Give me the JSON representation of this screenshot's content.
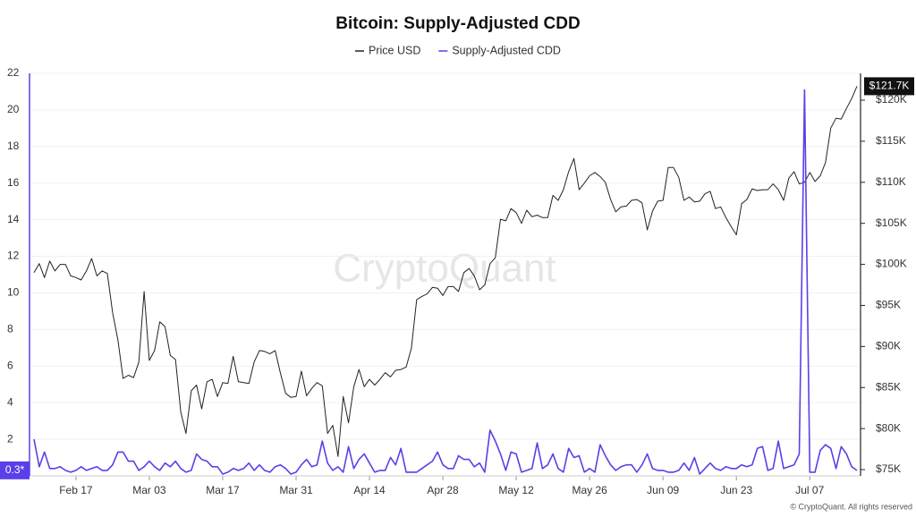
{
  "chart_data": {
    "type": "line",
    "title": "Bitcoin: Supply-Adjusted CDD",
    "watermark": "CryptoQuant",
    "footer": "© CryptoQuant. All rights reserved",
    "grid": true,
    "legend": "top",
    "categories": [
      null,
      null,
      null,
      null,
      null,
      null,
      null,
      null,
      "Feb 17",
      null,
      null,
      null,
      null,
      null,
      null,
      null,
      null,
      null,
      null,
      null,
      null,
      null,
      "Mar 03",
      null,
      null,
      null,
      null,
      null,
      null,
      null,
      null,
      null,
      null,
      null,
      null,
      null,
      "Mar 17",
      null,
      null,
      null,
      null,
      null,
      null,
      null,
      null,
      null,
      null,
      null,
      null,
      null,
      "Mar 31",
      null,
      null,
      null,
      null,
      null,
      null,
      null,
      null,
      null,
      null,
      null,
      null,
      null,
      "Apr 14",
      null,
      null,
      null,
      null,
      null,
      null,
      null,
      null,
      null,
      null,
      null,
      null,
      null,
      "Apr 28",
      null,
      null,
      null,
      null,
      null,
      null,
      null,
      null,
      null,
      null,
      null,
      null,
      null,
      "May 12",
      null,
      null,
      null,
      null,
      null,
      null,
      null,
      null,
      null,
      null,
      null,
      null,
      null,
      "May 26",
      null,
      null,
      null,
      null,
      null,
      null,
      null,
      null,
      null,
      null,
      null,
      null,
      null,
      "Jun 09",
      null,
      null,
      null,
      null,
      null,
      null,
      null,
      null,
      null,
      null,
      null,
      null,
      null,
      "Jun 23",
      null,
      null,
      null,
      null,
      null,
      null,
      null,
      null,
      null,
      null,
      null,
      null,
      null,
      "Jul 07",
      null,
      null,
      null,
      null,
      null,
      null,
      null,
      null,
      null
    ],
    "ylim": [
      0,
      22
    ],
    "yticks": [
      0,
      2,
      4,
      6,
      8,
      10,
      12,
      14,
      16,
      18,
      20,
      22
    ],
    "y2lim": [
      74240,
      123270
    ],
    "y2ticks": [
      {
        "value": 75000,
        "label": "$75K"
      },
      {
        "value": 80000,
        "label": "$80K"
      },
      {
        "value": 85000,
        "label": "$85K"
      },
      {
        "value": 90000,
        "label": "$90K"
      },
      {
        "value": 95000,
        "label": "$95K"
      },
      {
        "value": 100000,
        "label": "$100K"
      },
      {
        "value": 105000,
        "label": "$105K"
      },
      {
        "value": 110000,
        "label": "$110K"
      },
      {
        "value": 115000,
        "label": "$115K"
      },
      {
        "value": 120000,
        "label": "$120K"
      }
    ],
    "series": [
      {
        "name": "Price USD",
        "color": "#222222",
        "axis": "y2",
        "last_value_label": "$121.7K",
        "values": [
          99000,
          100100,
          98400,
          100400,
          99200,
          100000,
          100000,
          98600,
          98400,
          98100,
          99200,
          100700,
          98600,
          99200,
          98900,
          94100,
          90800,
          86100,
          86500,
          86200,
          88100,
          96700,
          88300,
          89500,
          93000,
          92400,
          88900,
          88400,
          82000,
          79400,
          84600,
          85300,
          82400,
          85700,
          86000,
          83900,
          85600,
          85500,
          88800,
          85700,
          85600,
          85500,
          88100,
          89500,
          89400,
          89100,
          89500,
          86800,
          84300,
          83800,
          83900,
          87000,
          84000,
          84900,
          85600,
          85200,
          79400,
          80400,
          76600,
          83900,
          80700,
          85100,
          87200,
          85100,
          86000,
          85300,
          86000,
          86800,
          86300,
          87100,
          87200,
          87500,
          89800,
          95700,
          96100,
          96400,
          97200,
          97100,
          96200,
          97300,
          97300,
          96700,
          99000,
          99500,
          98600,
          96900,
          97500,
          100100,
          100800,
          105500,
          105300,
          106800,
          106300,
          105000,
          106600,
          105800,
          106000,
          105700,
          105700,
          108400,
          107800,
          109100,
          111300,
          112900,
          109100,
          109900,
          110800,
          111200,
          110700,
          110000,
          107900,
          106400,
          107000,
          107100,
          107800,
          107900,
          107500,
          104200,
          106500,
          107700,
          107800,
          111800,
          111800,
          110600,
          107800,
          108200,
          107600,
          107700,
          108600,
          108900,
          106800,
          107000,
          105700,
          104600,
          103600,
          107400,
          107900,
          109200,
          109000,
          109100,
          109100,
          109800,
          109100,
          107800,
          110500,
          111300,
          109800,
          110000,
          111200,
          110100,
          110800,
          112400,
          116600,
          117800,
          117700,
          119000,
          120200,
          121700
        ]
      },
      {
        "name": "Supply-Adjusted CDD",
        "color": "#5b3fe8",
        "axis": "y",
        "last_value_label": "0.3*",
        "values": [
          2.0,
          0.5,
          1.3,
          0.4,
          0.4,
          0.5,
          0.3,
          0.2,
          0.3,
          0.5,
          0.3,
          0.4,
          0.5,
          0.3,
          0.3,
          0.6,
          1.3,
          1.3,
          0.8,
          0.8,
          0.3,
          0.5,
          0.8,
          0.5,
          0.3,
          0.7,
          0.5,
          0.8,
          0.4,
          0.2,
          0.3,
          1.2,
          0.9,
          0.8,
          0.5,
          0.5,
          0.1,
          0.2,
          0.4,
          0.3,
          0.4,
          0.7,
          0.3,
          0.6,
          0.3,
          0.2,
          0.5,
          0.6,
          0.4,
          0.1,
          0.2,
          0.6,
          0.9,
          0.5,
          0.6,
          1.9,
          0.7,
          0.3,
          0.5,
          0.2,
          1.6,
          0.4,
          0.9,
          1.2,
          0.7,
          0.2,
          0.3,
          0.3,
          1.0,
          0.6,
          1.5,
          0.2,
          0.2,
          0.2,
          0.4,
          0.6,
          0.8,
          1.3,
          0.6,
          0.4,
          0.4,
          1.1,
          0.9,
          0.9,
          0.5,
          0.7,
          0.2,
          2.5,
          1.9,
          1.2,
          0.3,
          1.3,
          1.2,
          0.2,
          0.3,
          0.4,
          1.8,
          0.4,
          0.6,
          1.2,
          0.4,
          0.2,
          1.5,
          1.0,
          1.1,
          0.2,
          0.4,
          0.2,
          1.7,
          1.1,
          0.6,
          0.3,
          0.5,
          0.6,
          0.6,
          0.2,
          0.6,
          1.2,
          0.4,
          0.3,
          0.3,
          0.2,
          0.2,
          0.3,
          0.7,
          0.3,
          1.0,
          0.1,
          0.4,
          0.7,
          0.4,
          0.3,
          0.5,
          0.4,
          0.4,
          0.6,
          0.5,
          0.6,
          1.5,
          1.6,
          0.3,
          0.4,
          1.9,
          0.4,
          0.5,
          0.6,
          1.2,
          21.1,
          0.2,
          0.2,
          1.4,
          1.7,
          1.5,
          0.4,
          1.6,
          1.2,
          0.5,
          0.3
        ]
      }
    ]
  }
}
